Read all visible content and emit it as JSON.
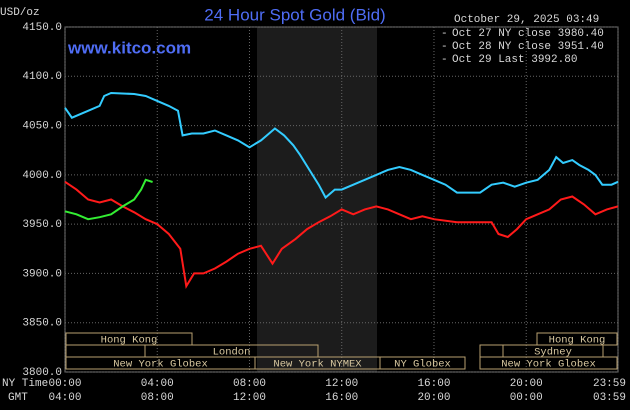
{
  "chart_data": {
    "type": "line",
    "title": "24 Hour Spot Gold (Bid)",
    "y_unit": "USD/oz",
    "timestamp": "October 29, 2025 03:49",
    "watermark": "www.kitco.com",
    "x_row_labels": [
      "NY Time",
      "GMT"
    ],
    "xlim": [
      0,
      23.98
    ],
    "xticks": [
      {
        "value": 0,
        "label": "00:00"
      },
      {
        "value": 4,
        "label": "04:00"
      },
      {
        "value": 8,
        "label": "08:00"
      },
      {
        "value": 12,
        "label": "12:00"
      },
      {
        "value": 16,
        "label": "16:00"
      },
      {
        "value": 20,
        "label": "20:00"
      },
      {
        "value": 23.98,
        "label": "23:59"
      }
    ],
    "gmt_tick_labels": [
      "04:00",
      "08:00",
      "12:00",
      "16:00",
      "20:00",
      "00:00",
      "03:59"
    ],
    "ylim": [
      3800,
      4150
    ],
    "yticks": [
      {
        "value": 3800,
        "label": "3800.0"
      },
      {
        "value": 3850,
        "label": "3850.0"
      },
      {
        "value": 3900,
        "label": "3900.0"
      },
      {
        "value": 3950,
        "label": "3950.0"
      },
      {
        "value": 4000,
        "label": "4000.0"
      },
      {
        "value": 4050,
        "label": "4050.0"
      },
      {
        "value": 4100,
        "label": "4100.0"
      },
      {
        "value": 4150,
        "label": "4150.0"
      }
    ],
    "grid": true,
    "legend": "top-right",
    "sessions": [
      "Hong Kong",
      "London",
      "New York Globex",
      "New York NYMEX",
      "NY Globex",
      "Hong Kong",
      "Sydney",
      "New York Globex"
    ],
    "series": [
      {
        "name": "Oct 27 NY close 3980.40",
        "color": "#33ccff",
        "x": [
          0,
          0.3,
          1,
          1.5,
          1.7,
          2,
          3,
          3.5,
          4,
          4.5,
          4.9,
          5.1,
          5.5,
          6,
          6.5,
          7,
          7.5,
          8,
          8.5,
          9.1,
          9.5,
          9.9,
          10.2,
          10.6,
          11,
          11.3,
          11.7,
          12,
          12.5,
          13,
          13.5,
          14,
          14.5,
          15,
          15.5,
          16,
          16.5,
          17,
          17.5,
          18,
          18.5,
          19,
          19.5,
          20,
          20.5,
          21,
          21.3,
          21.6,
          22,
          22.3,
          22.7,
          23,
          23.3,
          23.7,
          23.98
        ],
        "values": [
          4068,
          4058,
          4065,
          4070,
          4080,
          4083,
          4082,
          4080,
          4075,
          4070,
          4065,
          4040,
          4042,
          4042,
          4045,
          4040,
          4035,
          4028,
          4035,
          4047,
          4040,
          4030,
          4020,
          4005,
          3990,
          3977,
          3985,
          3985,
          3990,
          3995,
          4000,
          4005,
          4008,
          4005,
          4000,
          3995,
          3990,
          3982,
          3982,
          3982,
          3990,
          3992,
          3988,
          3992,
          3995,
          4005,
          4018,
          4012,
          4015,
          4010,
          4005,
          4000,
          3990,
          3990,
          3993
        ]
      },
      {
        "name": "Oct 28 NY close 3951.40",
        "color": "#ff1a1a",
        "x": [
          0,
          0.5,
          1,
          1.5,
          2,
          2.5,
          3,
          3.5,
          4,
          4.5,
          5,
          5.26,
          5.6,
          6,
          6.5,
          7,
          7.5,
          8,
          8.5,
          9.0,
          9.4,
          10,
          10.5,
          11,
          11.5,
          12,
          12.5,
          13,
          13.5,
          14,
          14.5,
          15,
          15.5,
          16,
          17,
          18,
          18.5,
          18.8,
          19.2,
          19.6,
          20,
          20.5,
          21,
          21.5,
          22,
          22.5,
          23,
          23.5,
          23.98
        ],
        "values": [
          3993,
          3985,
          3975,
          3972,
          3975,
          3968,
          3962,
          3955,
          3950,
          3940,
          3925,
          3887,
          3900,
          3900,
          3905,
          3912,
          3920,
          3925,
          3928,
          3910,
          3925,
          3935,
          3945,
          3952,
          3958,
          3965,
          3960,
          3965,
          3968,
          3965,
          3960,
          3955,
          3958,
          3955,
          3952,
          3952,
          3952,
          3940,
          3937,
          3945,
          3955,
          3960,
          3965,
          3975,
          3978,
          3970,
          3960,
          3965,
          3968
        ]
      },
      {
        "name": "Oct 29 Last 3992.80",
        "color": "#33ee33",
        "x": [
          0,
          0.5,
          1,
          1.5,
          2,
          2.5,
          3,
          3.3,
          3.5,
          3.8
        ],
        "values": [
          3963,
          3960,
          3955,
          3957,
          3960,
          3968,
          3975,
          3985,
          3995,
          3992.8
        ]
      }
    ]
  }
}
